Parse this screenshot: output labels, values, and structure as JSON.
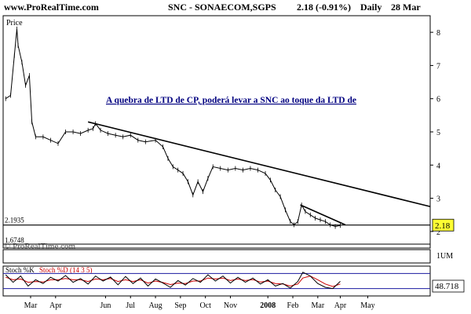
{
  "header": {
    "site": "www.ProRealTime.com",
    "symbol_line": "SNC - SONAECOM,SGPS",
    "last_change": "2.18 (-0.91%)",
    "period": "Daily",
    "date": "28 Mar"
  },
  "price_panel": {
    "title": "Price",
    "annotation": "A quebra de LTD de CP, poderá levar a SNC ao toque da LTD de",
    "watermark": "© ProRealTime.com",
    "last_price_badge": "2.18",
    "support_label": "2.1935",
    "low_label": "1.6748"
  },
  "volume_panel": {
    "scale_label": "1UM"
  },
  "stoch_panel": {
    "label_k": "Stoch %K",
    "label_d": "Stoch %D (14 3 5)",
    "last_value_badge": "48.718",
    "upper_level": 80,
    "lower_level": 20
  },
  "colors": {
    "price": "#000000",
    "trendline": "#000000",
    "badge_bg": "#ffff33",
    "stoch_d": "#cc0000",
    "stoch_k": "#000000",
    "level_lines": "#1a1aa0"
  },
  "chart_data": {
    "type": "line",
    "title": "SNC - SONAECOM,SGPS",
    "ylabel": "Price",
    "ylim": [
      1.5,
      8.5
    ],
    "y_ticks": [
      2,
      3,
      4,
      5,
      6,
      7,
      8
    ],
    "x_ticks": [
      "Mar",
      "Apr",
      "Jun",
      "Jul",
      "Aug",
      "Sep",
      "Oct",
      "Nov",
      "2008",
      "Feb",
      "Mar",
      "Apr",
      "May"
    ],
    "x_tick_pos": [
      0.5,
      1.5,
      3.5,
      4.5,
      5.5,
      6.5,
      7.5,
      8.5,
      10,
      11,
      12,
      12.9,
      14
    ],
    "xlim": [
      -0.6,
      16.5
    ],
    "series": [
      {
        "name": "SNC",
        "points": [
          [
            -0.5,
            6.0
          ],
          [
            -0.3,
            6.1
          ],
          [
            -0.15,
            7.3
          ],
          [
            -0.05,
            8.1
          ],
          [
            0.0,
            7.6
          ],
          [
            0.15,
            7.1
          ],
          [
            0.3,
            6.4
          ],
          [
            0.45,
            6.7
          ],
          [
            0.55,
            5.3
          ],
          [
            0.7,
            4.85
          ],
          [
            1.0,
            4.85
          ],
          [
            1.3,
            4.75
          ],
          [
            1.6,
            4.65
          ],
          [
            1.9,
            5.0
          ],
          [
            2.2,
            5.0
          ],
          [
            2.5,
            4.95
          ],
          [
            2.8,
            5.05
          ],
          [
            3.0,
            5.1
          ],
          [
            3.1,
            5.25
          ],
          [
            3.3,
            5.05
          ],
          [
            3.6,
            4.95
          ],
          [
            3.9,
            4.9
          ],
          [
            4.2,
            4.85
          ],
          [
            4.5,
            4.9
          ],
          [
            4.8,
            4.75
          ],
          [
            5.1,
            4.7
          ],
          [
            5.5,
            4.75
          ],
          [
            5.8,
            4.55
          ],
          [
            6.0,
            4.2
          ],
          [
            6.2,
            3.95
          ],
          [
            6.4,
            3.85
          ],
          [
            6.6,
            3.75
          ],
          [
            6.8,
            3.5
          ],
          [
            7.0,
            3.1
          ],
          [
            7.2,
            3.5
          ],
          [
            7.4,
            3.2
          ],
          [
            7.6,
            3.6
          ],
          [
            7.8,
            3.95
          ],
          [
            8.1,
            3.9
          ],
          [
            8.4,
            3.85
          ],
          [
            8.7,
            3.9
          ],
          [
            9.0,
            3.85
          ],
          [
            9.3,
            3.9
          ],
          [
            9.6,
            3.85
          ],
          [
            9.9,
            3.75
          ],
          [
            10.1,
            3.55
          ],
          [
            10.3,
            3.25
          ],
          [
            10.5,
            3.05
          ],
          [
            10.7,
            2.65
          ],
          [
            10.9,
            2.3
          ],
          [
            11.05,
            2.2
          ],
          [
            11.2,
            2.3
          ],
          [
            11.35,
            2.8
          ],
          [
            11.5,
            2.6
          ],
          [
            11.7,
            2.5
          ],
          [
            11.9,
            2.4
          ],
          [
            12.1,
            2.35
          ],
          [
            12.3,
            2.3
          ],
          [
            12.5,
            2.2
          ],
          [
            12.7,
            2.15
          ],
          [
            12.9,
            2.18
          ]
        ]
      }
    ],
    "trendlines": [
      {
        "from": [
          2.8,
          5.3
        ],
        "to": [
          16.5,
          2.75
        ]
      },
      {
        "from": [
          11.3,
          2.8
        ],
        "to": [
          13.1,
          2.2
        ]
      }
    ],
    "support_level": 2.1935,
    "stoch_ylim": [
      0,
      100
    ],
    "stoch_k_series": [
      [
        -0.5,
        75
      ],
      [
        -0.2,
        45
      ],
      [
        0.1,
        70
      ],
      [
        0.4,
        30
      ],
      [
        0.7,
        55
      ],
      [
        1.0,
        40
      ],
      [
        1.3,
        65
      ],
      [
        1.6,
        50
      ],
      [
        1.9,
        72
      ],
      [
        2.2,
        45
      ],
      [
        2.5,
        60
      ],
      [
        2.8,
        38
      ],
      [
        3.1,
        70
      ],
      [
        3.4,
        50
      ],
      [
        3.7,
        66
      ],
      [
        4.0,
        35
      ],
      [
        4.3,
        68
      ],
      [
        4.6,
        40
      ],
      [
        4.9,
        62
      ],
      [
        5.2,
        30
      ],
      [
        5.5,
        58
      ],
      [
        5.8,
        42
      ],
      [
        6.1,
        25
      ],
      [
        6.4,
        52
      ],
      [
        6.7,
        34
      ],
      [
        7.0,
        60
      ],
      [
        7.3,
        45
      ],
      [
        7.6,
        75
      ],
      [
        7.9,
        50
      ],
      [
        8.2,
        70
      ],
      [
        8.5,
        42
      ],
      [
        8.8,
        65
      ],
      [
        9.1,
        45
      ],
      [
        9.4,
        62
      ],
      [
        9.7,
        38
      ],
      [
        10.0,
        55
      ],
      [
        10.3,
        30
      ],
      [
        10.6,
        40
      ],
      [
        10.9,
        22
      ],
      [
        11.2,
        48
      ],
      [
        11.4,
        85
      ],
      [
        11.7,
        70
      ],
      [
        12.0,
        40
      ],
      [
        12.3,
        25
      ],
      [
        12.6,
        20
      ],
      [
        12.9,
        48.7
      ]
    ],
    "stoch_d_series": [
      [
        -0.5,
        65
      ],
      [
        -0.2,
        55
      ],
      [
        0.1,
        58
      ],
      [
        0.4,
        45
      ],
      [
        0.7,
        48
      ],
      [
        1.0,
        46
      ],
      [
        1.3,
        55
      ],
      [
        1.6,
        55
      ],
      [
        1.9,
        60
      ],
      [
        2.2,
        55
      ],
      [
        2.5,
        55
      ],
      [
        2.8,
        48
      ],
      [
        3.1,
        58
      ],
      [
        3.4,
        55
      ],
      [
        3.7,
        60
      ],
      [
        4.0,
        48
      ],
      [
        4.3,
        55
      ],
      [
        4.6,
        48
      ],
      [
        4.9,
        55
      ],
      [
        5.2,
        42
      ],
      [
        5.5,
        50
      ],
      [
        5.8,
        44
      ],
      [
        6.1,
        36
      ],
      [
        6.4,
        42
      ],
      [
        6.7,
        40
      ],
      [
        7.0,
        50
      ],
      [
        7.3,
        50
      ],
      [
        7.6,
        62
      ],
      [
        7.9,
        58
      ],
      [
        8.2,
        62
      ],
      [
        8.5,
        52
      ],
      [
        8.8,
        58
      ],
      [
        9.1,
        52
      ],
      [
        9.4,
        56
      ],
      [
        9.7,
        46
      ],
      [
        10.0,
        50
      ],
      [
        10.3,
        40
      ],
      [
        10.6,
        38
      ],
      [
        10.9,
        30
      ],
      [
        11.2,
        38
      ],
      [
        11.4,
        62
      ],
      [
        11.7,
        70
      ],
      [
        12.0,
        55
      ],
      [
        12.3,
        38
      ],
      [
        12.6,
        28
      ],
      [
        12.9,
        38
      ]
    ]
  }
}
